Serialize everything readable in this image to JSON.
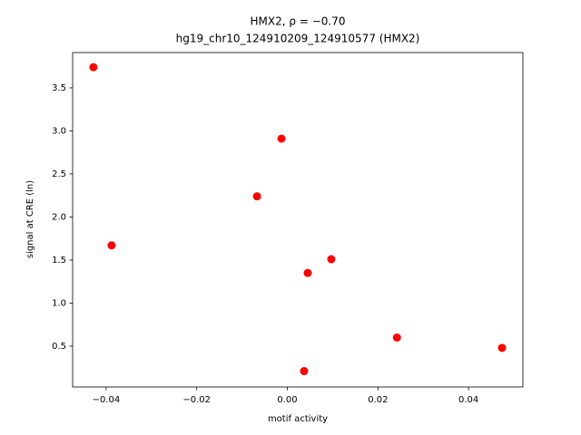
{
  "chart_data": {
    "type": "scatter",
    "title": "HMX2, ρ = −0.70",
    "subtitle": "hg19_chr10_124910209_124910577 (HMX2)",
    "x_label": "motif activity",
    "y_label": "signal at CRE (ln)",
    "color": "#ff0000",
    "x": [
      -0.0428,
      -0.0388,
      -0.0067,
      -0.0013,
      0.0045,
      0.0037,
      0.0097,
      0.0242,
      0.0474
    ],
    "values": [
      3.74,
      1.67,
      2.24,
      2.91,
      1.35,
      0.21,
      1.51,
      0.6,
      0.48
    ],
    "xlim": [
      -0.0474,
      0.052
    ],
    "ylim": [
      0.026,
      3.91
    ],
    "xticks": [
      {
        "value": -0.04,
        "label": "−0.04"
      },
      {
        "value": -0.02,
        "label": "−0.02"
      },
      {
        "value": 0,
        "label": "0.00"
      },
      {
        "value": 0.02,
        "label": "0.02"
      },
      {
        "value": 0.04,
        "label": "0.04"
      }
    ],
    "yticks": [
      0.5,
      {
        "value": 1,
        "label": "1.0"
      },
      1.5,
      {
        "value": 2,
        "label": "2.0"
      },
      2.5,
      {
        "value": 3,
        "label": "3.0"
      },
      3.5
    ],
    "grid": false
  }
}
